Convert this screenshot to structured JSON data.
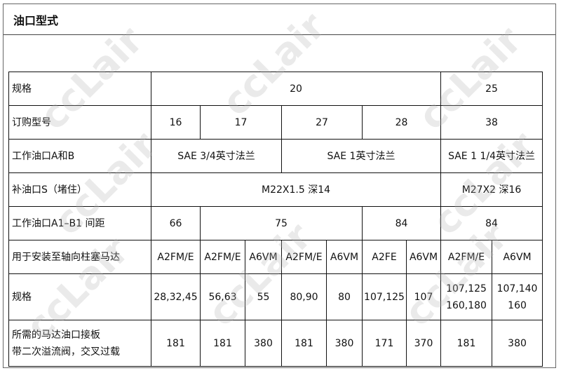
{
  "title": "油口型式",
  "watermark": "ccLair",
  "rows": [
    {
      "label": "规格",
      "cells": [
        {
          "v": "20",
          "span": 7
        },
        {
          "v": "25",
          "span": 2
        }
      ]
    },
    {
      "label": "订购型号",
      "cells": [
        {
          "v": "16",
          "span": 1
        },
        {
          "v": "17",
          "span": 2
        },
        {
          "v": "27",
          "span": 2
        },
        {
          "v": "28",
          "span": 2
        },
        {
          "v": "38",
          "span": 2
        }
      ]
    },
    {
      "label": "工作油口A和B",
      "cells": [
        {
          "v": "SAE 3/4英寸法兰",
          "span": 3
        },
        {
          "v": "SAE 1英寸法兰",
          "span": 4
        },
        {
          "v": "SAE 1 1/4英寸法兰",
          "span": 2
        }
      ]
    },
    {
      "label": "补油口S（堵住）",
      "cells": [
        {
          "v": "M22X1.5 深14",
          "span": 7
        },
        {
          "v": "M27X2 深16",
          "span": 2
        }
      ]
    },
    {
      "label": "工作油口A1–B1 间距",
      "cells": [
        {
          "v": "66",
          "span": 1
        },
        {
          "v": "75",
          "span": 4
        },
        {
          "v": "84",
          "span": 2
        },
        {
          "v": "84",
          "span": 2
        }
      ]
    },
    {
      "label": "用于安装至轴向柱塞马达",
      "cells": [
        {
          "v": "A2FM/E"
        },
        {
          "v": "A2FM/E"
        },
        {
          "v": "A6VM"
        },
        {
          "v": "A2FM/E"
        },
        {
          "v": "A6VM"
        },
        {
          "v": "A2FE"
        },
        {
          "v": "A6VM"
        },
        {
          "v": "A2FM/E"
        },
        {
          "v": "A6VM"
        }
      ]
    },
    {
      "label": "规格",
      "cells": [
        {
          "v": "28,32,45"
        },
        {
          "v": "56,63"
        },
        {
          "v": "55"
        },
        {
          "v": "80,90"
        },
        {
          "v": "80"
        },
        {
          "v": "107,125"
        },
        {
          "v": "107"
        },
        {
          "v": "107,125\n160,180"
        },
        {
          "v": "107,140\n160"
        }
      ]
    },
    {
      "label": "所需的马达油口接板\n带二次溢流阀，交叉过载",
      "cells": [
        {
          "v": "181"
        },
        {
          "v": "181"
        },
        {
          "v": "380"
        },
        {
          "v": "181"
        },
        {
          "v": "380"
        },
        {
          "v": "171"
        },
        {
          "v": "370"
        },
        {
          "v": "181"
        },
        {
          "v": "380"
        }
      ]
    }
  ]
}
